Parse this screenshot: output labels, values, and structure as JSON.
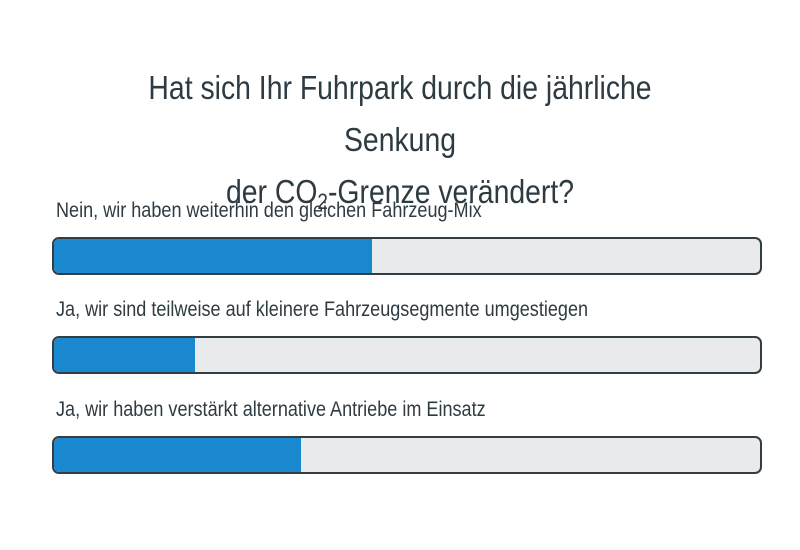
{
  "chart_data": {
    "type": "bar",
    "orientation": "horizontal",
    "title_parts": {
      "line1": "Hat sich Ihr Fuhrpark durch die jährliche Senkung",
      "line2_pre": "der CO",
      "line2_sub": "2",
      "line2_post": "-Grenze verändert?"
    },
    "categories": [
      "Nein, wir haben weiterhin den gleichen Fahrzeug-Mix",
      "Ja, wir sind teilweise auf kleinere Fahrzeugsegmente umgestiegen",
      "Ja, wir haben verstärkt alternative Antriebe im Einsatz"
    ],
    "values": [
      45,
      20,
      35
    ],
    "xlim": [
      0,
      100
    ],
    "grid": false,
    "colors": {
      "fill": "#1a88cf",
      "track": "#e9eaeb",
      "border": "#333d44",
      "text": "#2e3b42"
    }
  }
}
